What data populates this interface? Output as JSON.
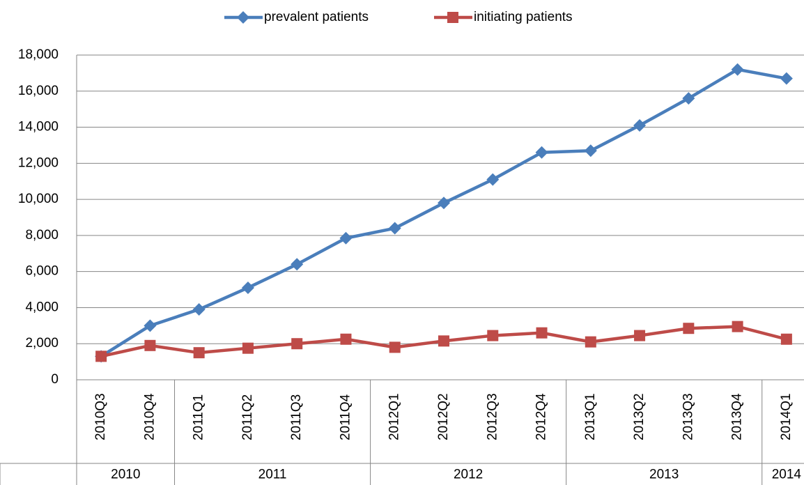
{
  "chart_data": {
    "type": "line",
    "categories": [
      "2010Q3",
      "2010Q4",
      "2011Q1",
      "2011Q2",
      "2011Q3",
      "2011Q4",
      "2012Q1",
      "2012Q2",
      "2012Q3",
      "2012Q4",
      "2013Q1",
      "2013Q2",
      "2013Q3",
      "2013Q4",
      "2014Q1"
    ],
    "category_groups": [
      "2010",
      "2011",
      "2012",
      "2013",
      "2014"
    ],
    "series": [
      {
        "name": "prevalent patients",
        "color": "#4a7ebb",
        "marker": "diamond",
        "values": [
          1300,
          3000,
          3900,
          5100,
          6400,
          7850,
          8400,
          9800,
          11100,
          12600,
          12700,
          14100,
          15600,
          17200,
          16700
        ]
      },
      {
        "name": "initiating patients",
        "color": "#be4b48",
        "marker": "square",
        "values": [
          1300,
          1900,
          1500,
          1750,
          2000,
          2250,
          1800,
          2150,
          2450,
          2600,
          2100,
          2450,
          2850,
          2950,
          2250
        ]
      }
    ],
    "ylim": [
      0,
      18000
    ],
    "yticks": [
      0,
      {
        "value": 2000,
        "label": "2,000"
      },
      {
        "value": 4000,
        "label": "4,000"
      },
      {
        "value": 6000,
        "label": "6,000"
      },
      {
        "value": 8000,
        "label": "8,000"
      },
      {
        "value": 10000,
        "label": "10,000"
      },
      {
        "value": 12000,
        "label": "12,000"
      },
      {
        "value": 14000,
        "label": "14,000"
      },
      {
        "value": 16000,
        "label": "16,000"
      },
      {
        "value": 18000,
        "label": "18,000"
      }
    ],
    "grid": true,
    "legend": "top"
  }
}
